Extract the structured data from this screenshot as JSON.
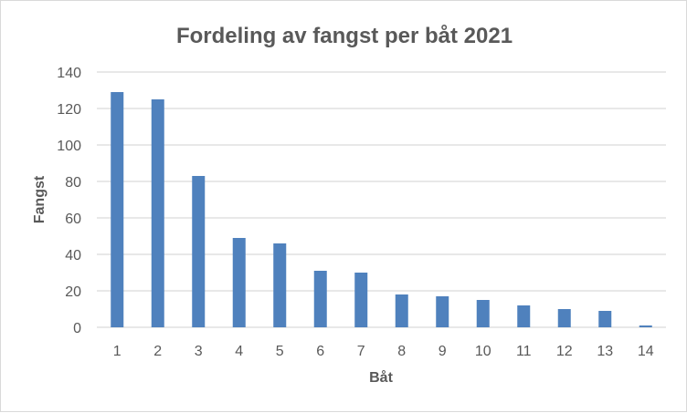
{
  "chart_data": {
    "type": "bar",
    "title": "Fordeling av fangst per båt 2021",
    "xlabel": "Båt",
    "ylabel": "Fangst",
    "categories": [
      "1",
      "2",
      "3",
      "4",
      "5",
      "6",
      "7",
      "8",
      "9",
      "10",
      "11",
      "12",
      "13",
      "14"
    ],
    "values": [
      129,
      125,
      83,
      49,
      46,
      31,
      30,
      18,
      17,
      15,
      12,
      10,
      9,
      1
    ],
    "ylim": [
      0,
      140
    ],
    "yticks": [
      "0",
      "20",
      "40",
      "60",
      "80",
      "100",
      "120",
      "140"
    ],
    "grid": true,
    "legend": "none",
    "bar_color": "#4f81bd"
  }
}
